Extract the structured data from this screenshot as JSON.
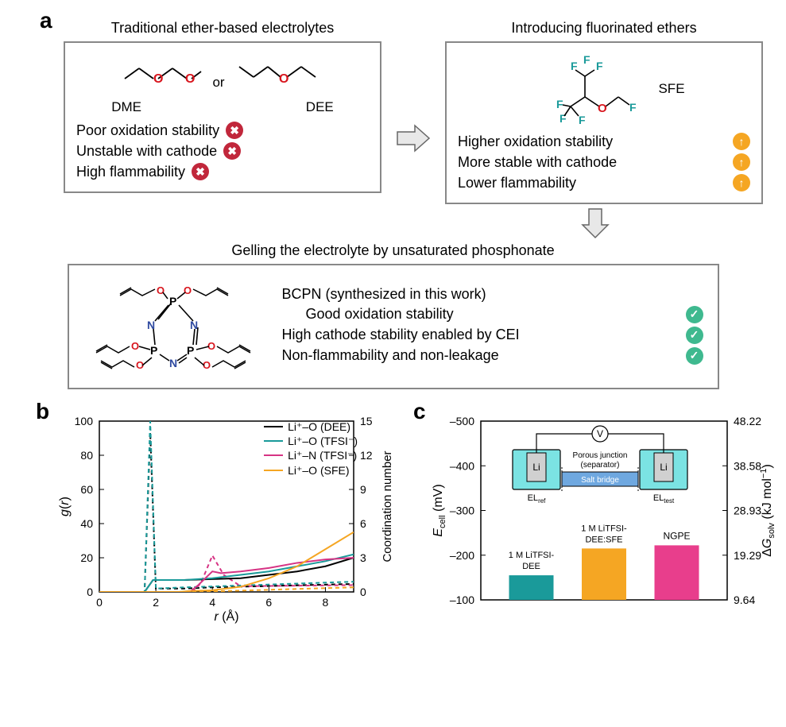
{
  "panelA": {
    "label": "a",
    "left": {
      "title": "Traditional ether-based electrolytes",
      "mols": [
        {
          "name": "DME",
          "svgId": "dme"
        },
        {
          "or": "or"
        },
        {
          "name": "DEE",
          "svgId": "dee"
        }
      ],
      "props": [
        {
          "text": "Poor oxidation stability",
          "badge": "x",
          "badgeColor": "#c1273b"
        },
        {
          "text": "Unstable with cathode",
          "badge": "x",
          "badgeColor": "#c1273b"
        },
        {
          "text": "High flammability",
          "badge": "x",
          "badgeColor": "#c1273b"
        }
      ]
    },
    "right": {
      "title": "Introducing fluorinated ethers",
      "mol": {
        "name": "SFE",
        "svgId": "sfe"
      },
      "props": [
        {
          "text": "Higher oxidation stability",
          "badge": "up",
          "badgeColor": "#f5a623"
        },
        {
          "text": "More stable with cathode",
          "badge": "up",
          "badgeColor": "#f5a623"
        },
        {
          "text": "Lower flammability",
          "badge": "up",
          "badgeColor": "#f5a623"
        }
      ]
    },
    "bottom": {
      "title": "Gelling the electrolyte by unsaturated phosphonate",
      "mol": {
        "name": "BCPN",
        "svgId": "bcpn"
      },
      "synth": "BCPN (synthesized in this work)",
      "props": [
        {
          "text": "Good oxidation stability",
          "badge": "check",
          "badgeColor": "#3fb98f"
        },
        {
          "text": "High cathode stability enabled by CEI",
          "badge": "check",
          "badgeColor": "#3fb98f"
        },
        {
          "text": "Non-flammability and non-leakage",
          "badge": "check",
          "badgeColor": "#3fb98f"
        }
      ]
    }
  },
  "panelB": {
    "label": "b",
    "type": "line",
    "xlabel": "r (Å)",
    "ylabel_left": "g(r)",
    "ylabel_right": "Coordination number",
    "xlim": [
      0,
      9
    ],
    "xticks": [
      0,
      2,
      4,
      6,
      8
    ],
    "ylim_left": [
      0,
      100
    ],
    "yticks_left": [
      0,
      20,
      40,
      60,
      80,
      100
    ],
    "ylim_right": [
      0,
      15
    ],
    "yticks_right": [
      0,
      3,
      6,
      9,
      12,
      15
    ],
    "legend": [
      {
        "label": "Li⁺–O (DEE)",
        "color": "#000000"
      },
      {
        "label": "Li⁺–O (TFSI⁻)",
        "color": "#1a9a9a"
      },
      {
        "label": "Li⁺–N (TFSI⁻)",
        "color": "#d63384"
      },
      {
        "label": "Li⁺–O (SFE)",
        "color": "#f5a623"
      }
    ],
    "grid_color": "#000000",
    "series_solid": {
      "black": [
        [
          0,
          0
        ],
        [
          1.6,
          0
        ],
        [
          1.9,
          7
        ],
        [
          2.4,
          7
        ],
        [
          3.0,
          7
        ],
        [
          5,
          8
        ],
        [
          6,
          10
        ],
        [
          7,
          12
        ],
        [
          8,
          15
        ],
        [
          9,
          20
        ]
      ],
      "teal": [
        [
          0,
          0
        ],
        [
          1.6,
          0
        ],
        [
          1.9,
          7
        ],
        [
          2.5,
          7
        ],
        [
          3.0,
          7
        ],
        [
          4,
          8
        ],
        [
          5,
          10
        ],
        [
          6,
          12
        ],
        [
          7,
          15
        ],
        [
          8,
          18
        ],
        [
          9,
          22
        ]
      ],
      "pink": [
        [
          0,
          0
        ],
        [
          2.0,
          0
        ],
        [
          3.2,
          0
        ],
        [
          3.5,
          4
        ],
        [
          4.0,
          12
        ],
        [
          4.3,
          11
        ],
        [
          5.0,
          12
        ],
        [
          6,
          14
        ],
        [
          7,
          17
        ],
        [
          8,
          19
        ],
        [
          9,
          20
        ]
      ],
      "orange": [
        [
          0,
          0
        ],
        [
          2.8,
          0
        ],
        [
          3.2,
          0.5
        ],
        [
          4.0,
          1
        ],
        [
          5,
          3
        ],
        [
          6,
          8
        ],
        [
          7,
          15
        ],
        [
          8,
          25
        ],
        [
          9,
          35
        ]
      ]
    },
    "series_dashed_rightaxis": {
      "black": [
        [
          0,
          0
        ],
        [
          1.6,
          0
        ],
        [
          1.8,
          14
        ],
        [
          2.0,
          0.3
        ],
        [
          3,
          0.3
        ],
        [
          4,
          0.4
        ],
        [
          9,
          0.7
        ]
      ],
      "teal": [
        [
          0,
          0
        ],
        [
          1.6,
          0
        ],
        [
          1.8,
          15
        ],
        [
          2.0,
          0.3
        ],
        [
          3,
          0.4
        ],
        [
          9,
          0.9
        ]
      ],
      "pink": [
        [
          0,
          0
        ],
        [
          3.3,
          0
        ],
        [
          3.6,
          0.8
        ],
        [
          4.0,
          3.2
        ],
        [
          4.4,
          1.5
        ],
        [
          5,
          0.5
        ],
        [
          9,
          0.6
        ]
      ],
      "orange": [
        [
          0,
          0
        ],
        [
          3,
          0
        ],
        [
          4,
          0.05
        ],
        [
          9,
          0.4
        ]
      ]
    }
  },
  "panelC": {
    "label": "c",
    "type": "bar",
    "ylabel_left": "E_cell (mV)",
    "ylabel_left_plain": "Ecell (mV)",
    "ylabel_right": "ΔG_solv (kJ mol⁻¹)",
    "ylim_left": [
      -100,
      -500
    ],
    "yticks_left": [
      -100,
      -200,
      -300,
      -400,
      -500
    ],
    "ylim_right": [
      9.64,
      48.22
    ],
    "yticks_right": [
      9.64,
      19.29,
      28.93,
      38.58,
      48.22
    ],
    "bars": [
      {
        "label": "1 M LiTFSI-DEE",
        "value": -155,
        "color": "#1a9a9a"
      },
      {
        "label": "1 M LiTFSI-DEE:SFE",
        "value": -215,
        "color": "#f5a623"
      },
      {
        "label": "NGPE",
        "value": -222,
        "color": "#e83e8c"
      }
    ],
    "inset": {
      "liLabel": "Li",
      "elRef": "EL_ref",
      "elTest": "EL_test",
      "bridge": "Salt bridge",
      "junction": "Porous junction\n(separator)",
      "vcircle": "V",
      "beaker_fill": "#7be3e3",
      "li_fill": "#d0d0d0",
      "bridge_fill": "#6fa8e0"
    }
  },
  "colors": {
    "border": "#888888",
    "atom_O": "#d8151d",
    "atom_N": "#2f4aa0",
    "atom_P": "#000000",
    "atom_F": "#1a9a9a",
    "arrow_fill": "#e8e8e8",
    "arrow_stroke": "#666666"
  }
}
